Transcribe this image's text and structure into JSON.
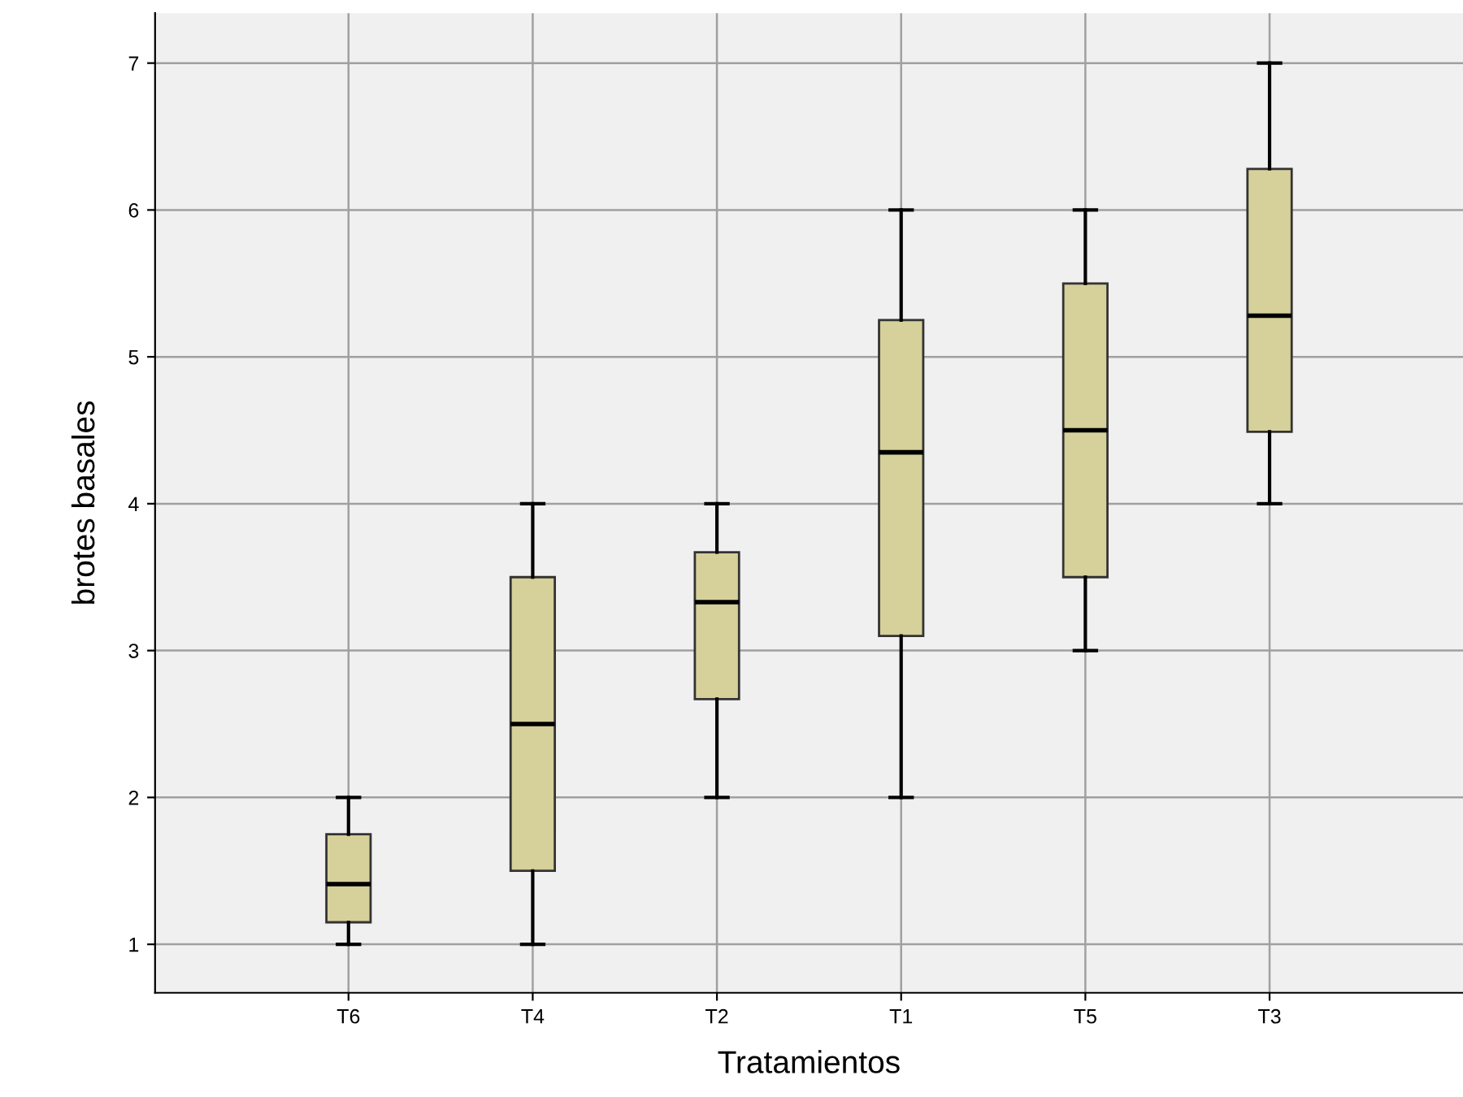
{
  "chart_data": {
    "type": "box",
    "xlabel": "Tratamientos",
    "ylabel": "brotes basales",
    "categories": [
      "T6",
      "T4",
      "T2",
      "T1",
      "T5",
      "T3"
    ],
    "color": "#d6d09a",
    "boxes": [
      {
        "low": 1,
        "q1": 1.15,
        "median": 1.41,
        "q3": 1.75,
        "high": 2
      },
      {
        "low": 1,
        "q1": 1.5,
        "median": 2.5,
        "q3": 3.5,
        "high": 4
      },
      {
        "low": 2,
        "q1": 2.67,
        "median": 3.33,
        "q3": 3.67,
        "high": 4
      },
      {
        "low": 2,
        "q1": 3.1,
        "median": 4.35,
        "q3": 5.25,
        "high": 6
      },
      {
        "low": 3,
        "q1": 3.5,
        "median": 4.5,
        "q3": 5.5,
        "high": 6
      },
      {
        "low": 4,
        "q1": 4.49,
        "median": 5.28,
        "q3": 6.28,
        "high": 7
      }
    ],
    "ylim": [
      0.67,
      7.34
    ],
    "yticks": [
      1,
      2,
      3,
      4,
      5,
      6,
      7
    ],
    "grid": true
  }
}
